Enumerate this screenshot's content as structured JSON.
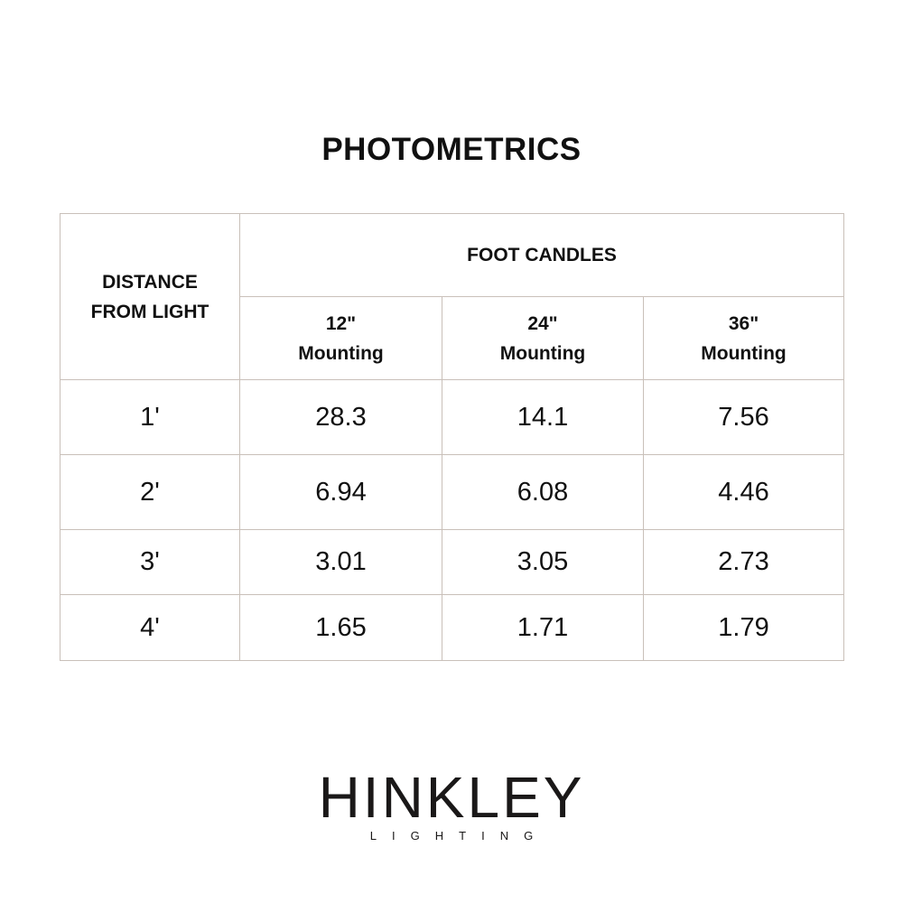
{
  "title": "PHOTOMETRICS",
  "table": {
    "row_header": "DISTANCE FROM LIGHT",
    "group_header": "FOOT CANDLES",
    "columns": [
      "12\" Mounting",
      "24\" Mounting",
      "36\" Mounting"
    ],
    "column_lines": [
      [
        "12\"",
        "Mounting"
      ],
      [
        "24\"",
        "Mounting"
      ],
      [
        "36\"",
        "Mounting"
      ]
    ],
    "row_header_lines": [
      "DISTANCE",
      "FROM LIGHT"
    ],
    "rows": [
      {
        "distance": "1'",
        "values": [
          "28.3",
          "14.1",
          "7.56"
        ]
      },
      {
        "distance": "2'",
        "values": [
          "6.94",
          "6.08",
          "4.46"
        ]
      },
      {
        "distance": "3'",
        "values": [
          "3.01",
          "3.05",
          "2.73"
        ]
      },
      {
        "distance": "4'",
        "values": [
          "1.65",
          "1.71",
          "1.79"
        ]
      }
    ],
    "border_color": "#c9c0b9"
  },
  "logo": {
    "brand": "HINKLEY",
    "tagline": "LIGHTING"
  }
}
